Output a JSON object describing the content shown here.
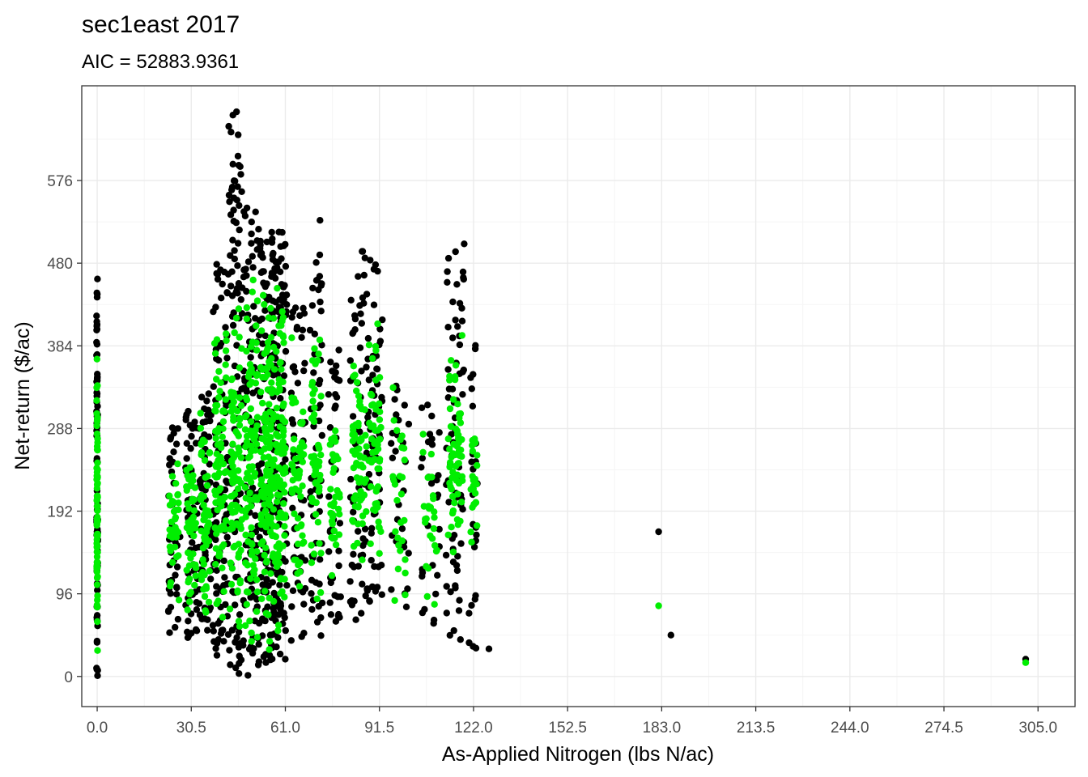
{
  "chart_data": {
    "type": "scatter",
    "title": "sec1east 2017",
    "subtitle": "AIC = 52883.9361",
    "xlabel": "As-Applied Nitrogen (lbs N/ac)",
    "ylabel": "Net-return ($/ac)",
    "xlim": [
      -5,
      317
    ],
    "ylim": [
      -35,
      686
    ],
    "x_ticks": [
      "0.0",
      "30.5",
      "61.0",
      "91.5",
      "122.0",
      "152.5",
      "183.0",
      "213.5",
      "244.0",
      "274.5",
      "305.0"
    ],
    "y_ticks": [
      "0",
      "96",
      "192",
      "288",
      "384",
      "480",
      "576"
    ],
    "grid": true,
    "legend": "none",
    "colors": {
      "observed": "#000000",
      "predicted": "#00ee00",
      "panel_border": "#333333",
      "grid_major": "#ebebeb",
      "grid_minor": "#f5f5f5"
    },
    "clusters": [
      {
        "x": 0,
        "xspread": 0.2,
        "observed": [
          0,
          485
        ],
        "predicted": [
          0,
          385
        ],
        "n": 80
      },
      {
        "x": 25,
        "xspread": 2.0,
        "observed": [
          45,
          290
        ],
        "predicted": [
          80,
          260
        ],
        "n": 40
      },
      {
        "x": 30.5,
        "xspread": 2.0,
        "observed": [
          30,
          310
        ],
        "predicted": [
          50,
          300
        ],
        "n": 55
      },
      {
        "x": 35,
        "xspread": 2.0,
        "observed": [
          40,
          330
        ],
        "predicted": [
          60,
          320
        ],
        "n": 60
      },
      {
        "x": 40,
        "xspread": 2.5,
        "observed": [
          20,
          480
        ],
        "predicted": [
          30,
          430
        ],
        "n": 90
      },
      {
        "x": 45,
        "xspread": 2.5,
        "observed": [
          0,
          660
        ],
        "predicted": [
          20,
          440
        ],
        "n": 100
      },
      {
        "x": 50,
        "xspread": 2.5,
        "observed": [
          0,
          545
        ],
        "predicted": [
          20,
          470
        ],
        "n": 110
      },
      {
        "x": 55,
        "xspread": 2.5,
        "observed": [
          10,
          510
        ],
        "predicted": [
          20,
          470
        ],
        "n": 120
      },
      {
        "x": 59,
        "xspread": 2.5,
        "observed": [
          20,
          520
        ],
        "predicted": [
          40,
          480
        ],
        "n": 120
      },
      {
        "x": 65,
        "xspread": 2.5,
        "observed": [
          40,
          440
        ],
        "predicted": [
          90,
          410
        ],
        "n": 60
      },
      {
        "x": 71,
        "xspread": 2.0,
        "observed": [
          30,
          530
        ],
        "predicted": [
          60,
          400
        ],
        "n": 60
      },
      {
        "x": 77,
        "xspread": 2.0,
        "observed": [
          60,
          400
        ],
        "predicted": [
          110,
          320
        ],
        "n": 40
      },
      {
        "x": 85,
        "xspread": 3.0,
        "observed": [
          50,
          500
        ],
        "predicted": [
          120,
          380
        ],
        "n": 70
      },
      {
        "x": 90,
        "xspread": 2.5,
        "observed": [
          80,
          500
        ],
        "predicted": [
          130,
          420
        ],
        "n": 60
      },
      {
        "x": 98,
        "xspread": 3.0,
        "observed": [
          60,
          350
        ],
        "predicted": [
          40,
          370
        ],
        "n": 30
      },
      {
        "x": 108,
        "xspread": 3.0,
        "observed": [
          60,
          330
        ],
        "predicted": [
          80,
          320
        ],
        "n": 30
      },
      {
        "x": 116,
        "xspread": 3.0,
        "observed": [
          35,
          505
        ],
        "predicted": [
          130,
          400
        ],
        "n": 70
      },
      {
        "x": 122,
        "xspread": 1.5,
        "observed": [
          30,
          400
        ],
        "predicted": [
          140,
          300
        ],
        "n": 25
      }
    ],
    "outliers_observed": [
      {
        "x": 44,
        "y": 652
      },
      {
        "x": 44,
        "y": 595
      },
      {
        "x": 127,
        "y": 32
      },
      {
        "x": 182,
        "y": 168
      },
      {
        "x": 186,
        "y": 48
      },
      {
        "x": 301,
        "y": 20
      }
    ],
    "outliers_predicted": [
      {
        "x": 182,
        "y": 82
      },
      {
        "x": 301,
        "y": 16
      }
    ]
  }
}
